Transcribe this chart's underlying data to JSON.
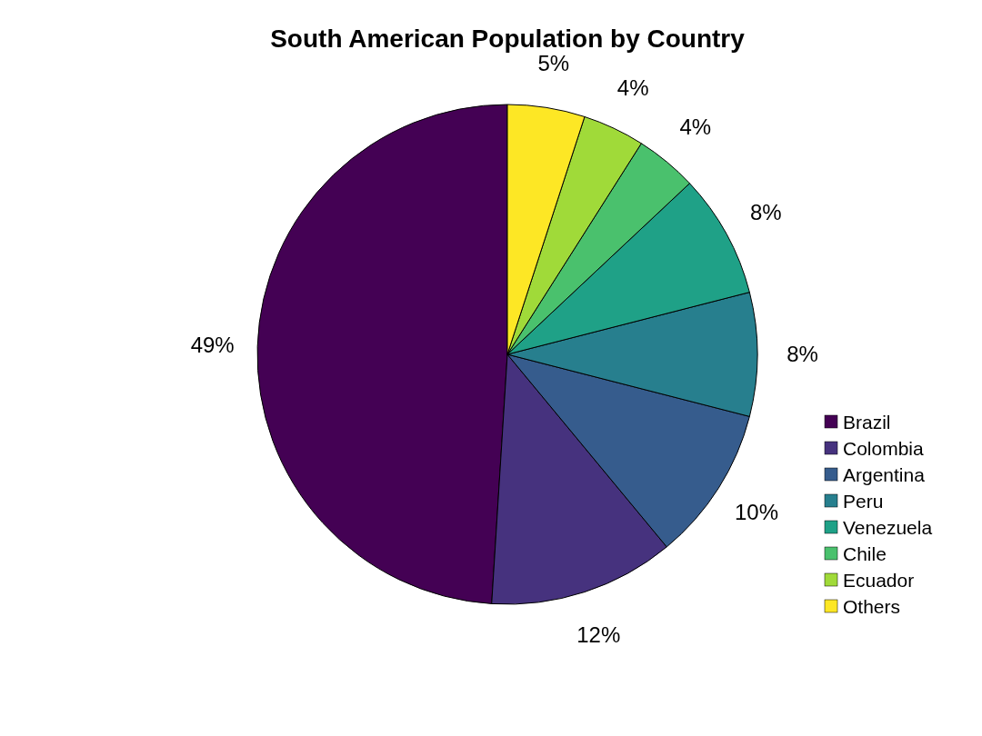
{
  "chart_data": {
    "type": "pie",
    "title": "South American Population by Country",
    "categories": [
      "Brazil",
      "Colombia",
      "Argentina",
      "Peru",
      "Venezuela",
      "Chile",
      "Ecuador",
      "Others"
    ],
    "values": [
      49,
      12,
      10,
      8,
      8,
      4,
      4,
      5
    ],
    "value_labels": [
      "49%",
      "12%",
      "10%",
      "8%",
      "8%",
      "4%",
      "4%",
      "5%"
    ],
    "colors": [
      "#440154",
      "#46327e",
      "#365c8d",
      "#277f8e",
      "#1fa187",
      "#4ac16d",
      "#a0da39",
      "#fde725"
    ],
    "legend": "right"
  }
}
